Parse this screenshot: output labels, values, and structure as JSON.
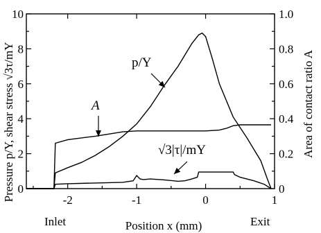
{
  "chart_data": {
    "type": "line",
    "xlabel": "Position x (mm)",
    "ylabel_left": "Pressure p/Y, shear stress √3τ/mY",
    "ylabel_right": "Area of contact ratio A",
    "xlim": [
      -2.6,
      1.0
    ],
    "ylim_left": [
      0,
      10
    ],
    "ylim_right": [
      0,
      1.0
    ],
    "x_ticks": [
      -2,
      -1,
      0,
      1
    ],
    "x_tick_labels": [
      "-2",
      "-1",
      "0",
      "1"
    ],
    "y_left_ticks": [
      0,
      2,
      4,
      6,
      8,
      10
    ],
    "y_left_tick_labels": [
      "0",
      "2",
      "4",
      "6",
      "8",
      "10"
    ],
    "y_right_ticks": [
      0,
      0.2,
      0.4,
      0.6,
      0.8,
      1.0
    ],
    "y_right_tick_labels": [
      "0",
      "0.2",
      "0.4",
      "0.6",
      "0.8",
      "1.0"
    ],
    "inlet_label": "Inlet",
    "exit_label": "Exit",
    "grid": false,
    "series": [
      {
        "name": "p/Y",
        "axis": "left",
        "x": [
          -2.6,
          -2.2,
          -2.18,
          -2.0,
          -1.8,
          -1.6,
          -1.4,
          -1.2,
          -1.0,
          -0.8,
          -0.6,
          -0.4,
          -0.2,
          -0.1,
          -0.05,
          0.0,
          0.1,
          0.2,
          0.4,
          0.6,
          0.8,
          0.9,
          0.95
        ],
        "y": [
          0.0,
          0.0,
          0.9,
          1.2,
          1.5,
          1.9,
          2.4,
          3.0,
          3.7,
          4.7,
          5.9,
          7.0,
          8.3,
          8.8,
          8.9,
          8.7,
          7.4,
          6.0,
          4.1,
          2.9,
          1.6,
          0.5,
          0.0
        ]
      },
      {
        "name": "A",
        "axis": "right",
        "x": [
          -2.6,
          -2.2,
          -2.18,
          -2.0,
          -1.6,
          -1.2,
          -1.0,
          -0.6,
          -0.2,
          0.0,
          0.2,
          0.3,
          0.4,
          0.5,
          0.6,
          0.8,
          0.95
        ],
        "y": [
          0.0,
          0.0,
          0.26,
          0.28,
          0.3,
          0.325,
          0.33,
          0.33,
          0.33,
          0.33,
          0.335,
          0.345,
          0.36,
          0.365,
          0.365,
          0.365,
          0.365
        ]
      },
      {
        "name": "√3|τ|/mY",
        "axis": "left",
        "x": [
          -2.6,
          -2.2,
          -2.18,
          -2.0,
          -1.6,
          -1.2,
          -1.05,
          -1.0,
          -0.95,
          -0.9,
          -0.8,
          -0.6,
          -0.4,
          -0.3,
          -0.2,
          -0.12,
          -0.1,
          0.0,
          0.2,
          0.4,
          0.42,
          0.5,
          0.7,
          0.85,
          0.95
        ],
        "y": [
          0.0,
          0.0,
          0.25,
          0.28,
          0.32,
          0.36,
          0.45,
          0.75,
          0.55,
          0.52,
          0.55,
          0.5,
          0.42,
          0.45,
          0.55,
          0.65,
          0.95,
          0.95,
          0.95,
          0.95,
          0.8,
          0.65,
          0.45,
          0.25,
          0.0
        ]
      }
    ],
    "annotations": [
      {
        "text": "p/Y",
        "series": "p/Y"
      },
      {
        "text": "A",
        "series": "A"
      },
      {
        "text": "√3|τ|/mY",
        "series": "√3|τ|/mY"
      }
    ]
  }
}
